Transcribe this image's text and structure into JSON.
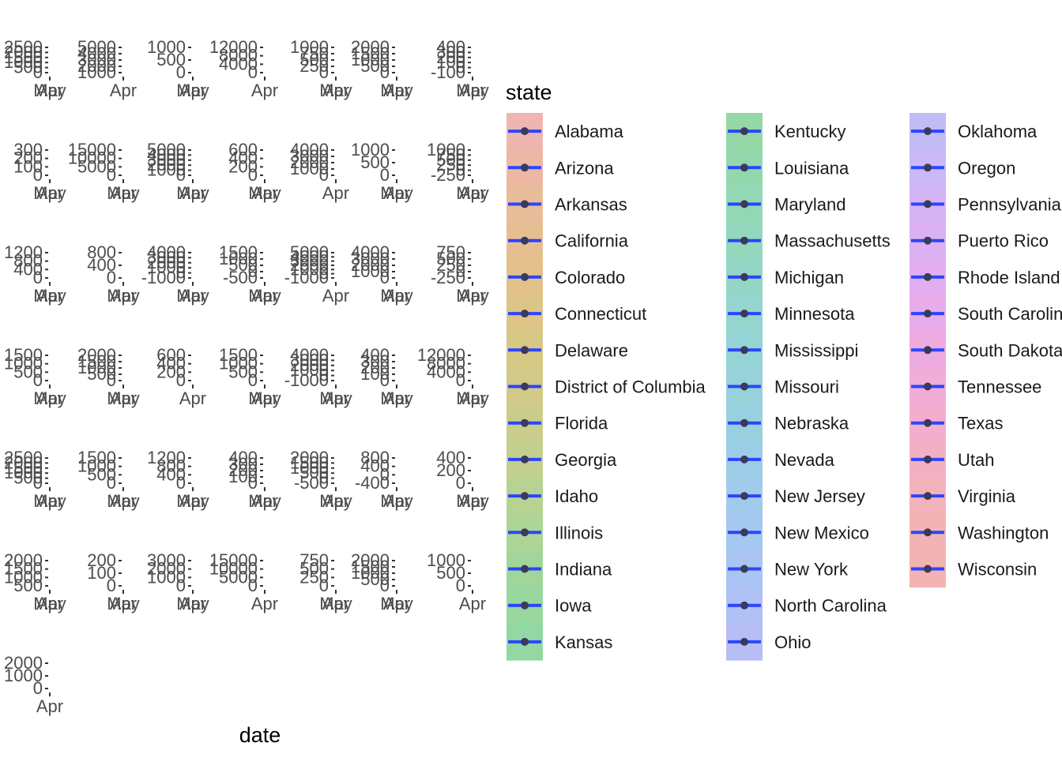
{
  "chart_data": {
    "type": "line",
    "xlabel": "date",
    "legend_title": "state",
    "legend_position": "right",
    "grid": false,
    "line_color": "#2b45ff",
    "point_color": "#3a3a5a",
    "panels": [
      {
        "state": "Alabama",
        "y_ticks": [
          "2500",
          "2000",
          "1500",
          "1000",
          "500",
          "0"
        ],
        "x_ticks": [
          "Apr",
          "May"
        ]
      },
      {
        "state": "Arizona",
        "y_ticks": [
          "5000",
          "4000",
          "3000",
          "2000",
          "1000"
        ],
        "x_ticks": [
          "Apr"
        ]
      },
      {
        "state": "Arkansas",
        "y_ticks": [
          "1000",
          "500",
          "0"
        ],
        "x_ticks": [
          "Apr",
          "May"
        ]
      },
      {
        "state": "California",
        "y_ticks": [
          "12000",
          "8000",
          "4000",
          "0"
        ],
        "x_ticks": [
          "Apr"
        ]
      },
      {
        "state": "Colorado",
        "y_ticks": [
          "1000",
          "750",
          "500",
          "250",
          "0"
        ],
        "x_ticks": [
          "Apr",
          "May"
        ]
      },
      {
        "state": "Connecticut",
        "y_ticks": [
          "2000",
          "1500",
          "1000",
          "500",
          "0"
        ],
        "x_ticks": [
          "Apr",
          "May"
        ]
      },
      {
        "state": "Delaware",
        "y_ticks": [
          "400",
          "300",
          "200",
          "100",
          "0",
          "-100"
        ],
        "x_ticks": [
          "Apr",
          "May"
        ]
      },
      {
        "state": "District of Columbia",
        "y_ticks": [
          "300",
          "200",
          "100",
          "0"
        ],
        "x_ticks": [
          "Apr",
          "May"
        ]
      },
      {
        "state": "Florida",
        "y_ticks": [
          "15000",
          "10000",
          "5000",
          "0"
        ],
        "x_ticks": [
          "Apr",
          "May"
        ]
      },
      {
        "state": "Georgia",
        "y_ticks": [
          "5000",
          "4000",
          "3000",
          "2000",
          "1000",
          "0"
        ],
        "x_ticks": [
          "Apr",
          "May"
        ]
      },
      {
        "state": "Idaho",
        "y_ticks": [
          "600",
          "400",
          "200",
          "0"
        ],
        "x_ticks": [
          "Apr",
          "May"
        ]
      },
      {
        "state": "Illinois",
        "y_ticks": [
          "4000",
          "3000",
          "2000",
          "1000",
          "0"
        ],
        "x_ticks": [
          "Apr"
        ]
      },
      {
        "state": "Indiana",
        "y_ticks": [
          "1000",
          "500",
          "0"
        ],
        "x_ticks": [
          "Apr",
          "May"
        ]
      },
      {
        "state": "Iowa",
        "y_ticks": [
          "1000",
          "750",
          "500",
          "250",
          "0",
          "-250"
        ],
        "x_ticks": [
          "Apr",
          "May"
        ]
      },
      {
        "state": "Kansas",
        "y_ticks": [
          "1200",
          "800",
          "400",
          "0"
        ],
        "x_ticks": [
          "Apr",
          "May"
        ]
      },
      {
        "state": "Kentucky",
        "y_ticks": [
          "800",
          "400",
          "0"
        ],
        "x_ticks": [
          "Apr",
          "May"
        ]
      },
      {
        "state": "Louisiana",
        "y_ticks": [
          "4000",
          "3000",
          "2000",
          "1000",
          "0",
          "-1000"
        ],
        "x_ticks": [
          "Apr",
          "May"
        ]
      },
      {
        "state": "Maryland",
        "y_ticks": [
          "1500",
          "1000",
          "500",
          "0",
          "-500"
        ],
        "x_ticks": [
          "Apr",
          "May"
        ]
      },
      {
        "state": "Massachusetts",
        "y_ticks": [
          "5000",
          "4000",
          "3000",
          "2000",
          "1000",
          "0",
          "-1000"
        ],
        "x_ticks": [
          "Apr"
        ]
      },
      {
        "state": "Michigan",
        "y_ticks": [
          "4000",
          "3000",
          "2000",
          "1000",
          "0"
        ],
        "x_ticks": [
          "Apr",
          "May"
        ]
      },
      {
        "state": "Minnesota",
        "y_ticks": [
          "750",
          "500",
          "250",
          "0",
          "-250"
        ],
        "x_ticks": [
          "Apr",
          "May"
        ]
      },
      {
        "state": "Mississippi",
        "y_ticks": [
          "1500",
          "1000",
          "500",
          "0"
        ],
        "x_ticks": [
          "Apr",
          "May"
        ]
      },
      {
        "state": "Missouri",
        "y_ticks": [
          "2000",
          "1500",
          "1000",
          "500",
          "0"
        ],
        "x_ticks": [
          "Apr",
          "May"
        ]
      },
      {
        "state": "Nebraska",
        "y_ticks": [
          "600",
          "400",
          "200",
          "0"
        ],
        "x_ticks": [
          "Apr"
        ]
      },
      {
        "state": "Nevada",
        "y_ticks": [
          "1500",
          "1000",
          "500",
          "0"
        ],
        "x_ticks": [
          "Apr",
          "May"
        ]
      },
      {
        "state": "New Jersey",
        "y_ticks": [
          "4000",
          "3000",
          "2000",
          "1000",
          "0",
          "-1000"
        ],
        "x_ticks": [
          "Apr",
          "May"
        ]
      },
      {
        "state": "New Mexico",
        "y_ticks": [
          "400",
          "300",
          "200",
          "100",
          "0"
        ],
        "x_ticks": [
          "Apr",
          "May"
        ]
      },
      {
        "state": "New York",
        "y_ticks": [
          "12000",
          "8000",
          "4000",
          "0"
        ],
        "x_ticks": [
          "Apr",
          "May"
        ]
      },
      {
        "state": "North Carolina",
        "y_ticks": [
          "2500",
          "2000",
          "1500",
          "1000",
          "500",
          "0"
        ],
        "x_ticks": [
          "Apr",
          "May"
        ]
      },
      {
        "state": "Ohio",
        "y_ticks": [
          "1500",
          "1000",
          "500",
          "0"
        ],
        "x_ticks": [
          "Apr",
          "May"
        ]
      },
      {
        "state": "Oklahoma",
        "y_ticks": [
          "1200",
          "800",
          "400",
          "0"
        ],
        "x_ticks": [
          "Apr",
          "May"
        ]
      },
      {
        "state": "Oregon",
        "y_ticks": [
          "400",
          "300",
          "200",
          "100",
          "0"
        ],
        "x_ticks": [
          "Apr",
          "May"
        ]
      },
      {
        "state": "Pennsylvania",
        "y_ticks": [
          "2000",
          "1500",
          "1000",
          "500",
          "0",
          "-500"
        ],
        "x_ticks": [
          "Apr",
          "May"
        ]
      },
      {
        "state": "Puerto Rico",
        "y_ticks": [
          "800",
          "400",
          "0",
          "-400"
        ],
        "x_ticks": [
          "Apr",
          "May"
        ]
      },
      {
        "state": "Rhode Island",
        "y_ticks": [
          "400",
          "200",
          "0"
        ],
        "x_ticks": [
          "Apr",
          "May"
        ]
      },
      {
        "state": "South Carolina",
        "y_ticks": [
          "2000",
          "1500",
          "1000",
          "500"
        ],
        "x_ticks": [
          "Apr",
          "May"
        ]
      },
      {
        "state": "South Dakota",
        "y_ticks": [
          "200",
          "100",
          "0"
        ],
        "x_ticks": [
          "Apr",
          "May"
        ]
      },
      {
        "state": "Tennessee",
        "y_ticks": [
          "3000",
          "2000",
          "1000",
          "0"
        ],
        "x_ticks": [
          "Apr",
          "May"
        ]
      },
      {
        "state": "Texas",
        "y_ticks": [
          "15000",
          "10000",
          "5000",
          "0"
        ],
        "x_ticks": [
          "Apr"
        ]
      },
      {
        "state": "Utah",
        "y_ticks": [
          "750",
          "500",
          "250",
          "0"
        ],
        "x_ticks": [
          "Apr",
          "May"
        ]
      },
      {
        "state": "Virginia",
        "y_ticks": [
          "2000",
          "1500",
          "1000",
          "500",
          "0"
        ],
        "x_ticks": [
          "Apr",
          "May"
        ]
      },
      {
        "state": "Washington",
        "y_ticks": [
          "1000",
          "500",
          "0"
        ],
        "x_ticks": [
          "Apr"
        ]
      },
      {
        "state": "Wisconsin",
        "y_ticks": [
          "2000",
          "1000",
          "0"
        ],
        "x_ticks": [
          "Apr"
        ]
      }
    ],
    "legend_columns": [
      {
        "items": [
          "Alabama",
          "Arizona",
          "Arkansas",
          "California",
          "Colorado",
          "Connecticut",
          "Delaware",
          "District of Columbia",
          "Florida",
          "Georgia",
          "Idaho",
          "Illinois",
          "Indiana",
          "Iowa",
          "Kansas"
        ],
        "colors": [
          "#efb5b0",
          "#ecb8a4",
          "#e9bc9a",
          "#e6bf90",
          "#e2c28a",
          "#ddc587",
          "#d7c886",
          "#d1ca88",
          "#cacc8b",
          "#c3cf8f",
          "#b8d292",
          "#acd596",
          "#a0d69a",
          "#98d79e",
          "#93d8a2"
        ]
      },
      {
        "items": [
          "Kentucky",
          "Louisiana",
          "Maryland",
          "Massachusetts",
          "Michigan",
          "Minnesota",
          "Mississippi",
          "Missouri",
          "Nebraska",
          "Nevada",
          "New Jersey",
          "New Mexico",
          "New York",
          "North Carolina",
          "Ohio"
        ],
        "colors": [
          "#93d8a5",
          "#93d8ad",
          "#93d8b5",
          "#93d7bd",
          "#93d6c5",
          "#94d5cd",
          "#95d4d4",
          "#97d2da",
          "#99d0e0",
          "#9ccde6",
          "#a0cbec",
          "#a5c8f0",
          "#aac4f3",
          "#b0c1f5",
          "#b7bef6"
        ]
      },
      {
        "items": [
          "Oklahoma",
          "Oregon",
          "Pennsylvania",
          "Puerto Rico",
          "Rhode Island",
          "South Carolina",
          "South Dakota",
          "Tennessee",
          "Texas",
          "Utah",
          "Virginia",
          "Washington",
          "Wisconsin"
        ],
        "colors": [
          "#c1bbf6",
          "#cbb8f6",
          "#d4b4f5",
          "#dcb1f3",
          "#e3aef0",
          "#e9acea",
          "#eeabe2",
          "#f1acd8",
          "#f3aecd",
          "#f4b0c3",
          "#f4b2bb",
          "#f3b3b5",
          "#f2b4b2"
        ]
      }
    ]
  }
}
